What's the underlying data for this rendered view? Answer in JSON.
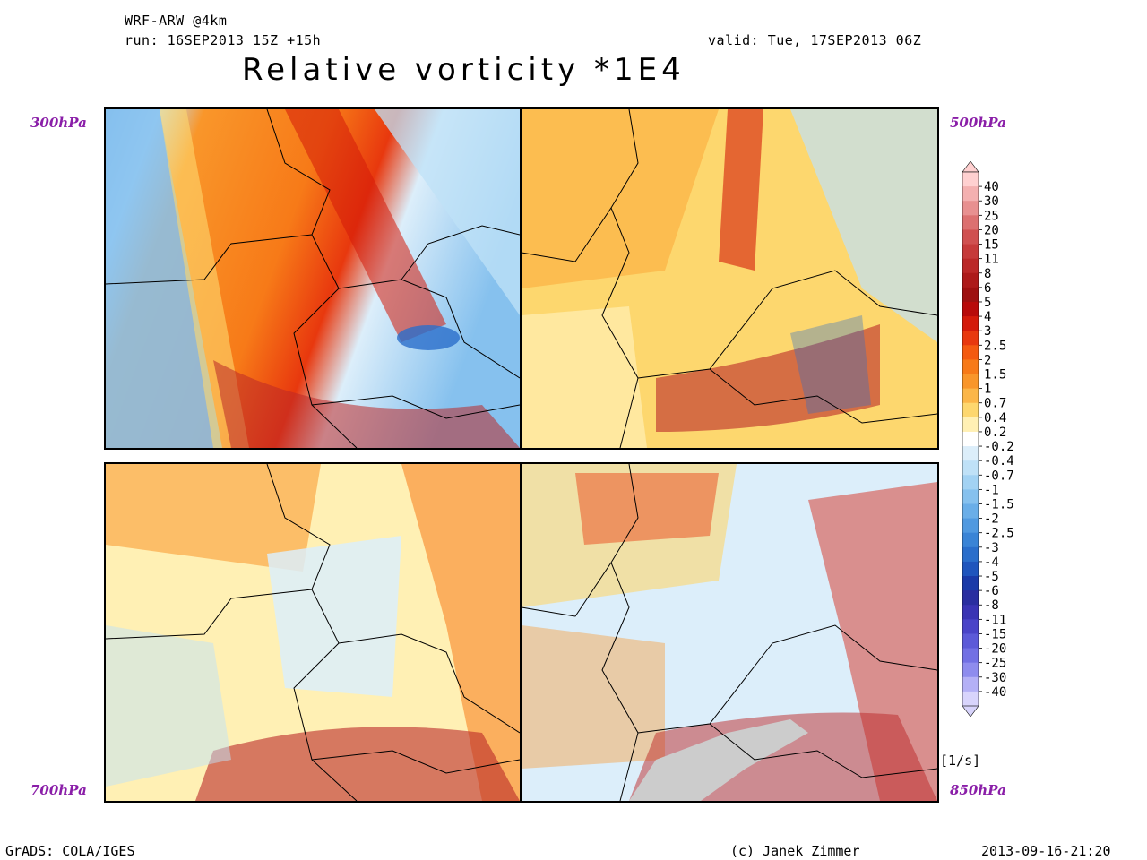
{
  "header": {
    "model": "WRF-ARW @4km",
    "run": "run: 16SEP2013 15Z +15h",
    "valid": "valid: Tue, 17SEP2013 06Z",
    "title": "Relative vorticity *1E4"
  },
  "panels": [
    {
      "level": "300hPa"
    },
    {
      "level": "500hPa"
    },
    {
      "level": "700hPa"
    },
    {
      "level": "850hPa"
    }
  ],
  "colorbar": {
    "labels": [
      "40",
      "30",
      "25",
      "20",
      "15",
      "11",
      "8",
      "6",
      "5",
      "4",
      "3",
      "2.5",
      "2",
      "1.5",
      "1",
      "0.7",
      "0.4",
      "0.2",
      "-0.2",
      "-0.4",
      "-0.7",
      "-1",
      "-1.5",
      "-2",
      "-2.5",
      "-3",
      "-4",
      "-5",
      "-6",
      "-8",
      "-11",
      "-15",
      "-20",
      "-25",
      "-30",
      "-40"
    ],
    "colors": [
      "#ffd0d0",
      "#f4b0b0",
      "#e89090",
      "#dc7070",
      "#d05050",
      "#c63a3a",
      "#bb2828",
      "#ad1a1a",
      "#9e1010",
      "#b80a0a",
      "#d41a0a",
      "#e8380e",
      "#f45a10",
      "#f77a18",
      "#f9962a",
      "#fbb648",
      "#fdd76e",
      "#fff0b4",
      "#ffffff",
      "#dceefa",
      "#bfe1f7",
      "#a2d2f3",
      "#86c1ee",
      "#6aaee8",
      "#5099e0",
      "#3a84d6",
      "#2a6ecb",
      "#1f55bd",
      "#1a3aa8",
      "#2a2ea0",
      "#3a34b4",
      "#4a44c8",
      "#5c5ad8",
      "#7270e4",
      "#8e8cee",
      "#b4b0f6",
      "#d8d4fc"
    ],
    "unit": "[1/s]"
  },
  "footer": {
    "software": "GrADS: COLA/IGES",
    "author": "(c) Janek Zimmer",
    "timestamp": "2013-09-16-21:20"
  }
}
